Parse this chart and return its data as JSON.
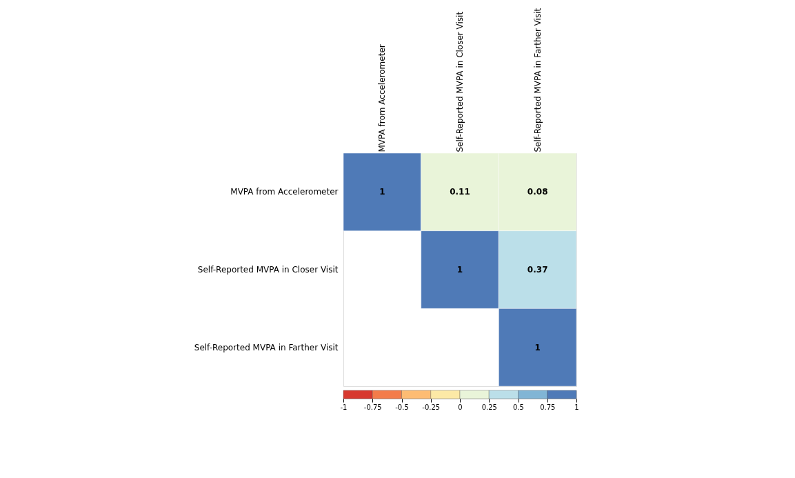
{
  "chart_data": {
    "type": "heatmap",
    "categories": [
      "MVPA from Accelerometer",
      "Self-Reported MVPA in Closer Visit",
      "Self-Reported MVPA in Farther Visit"
    ],
    "y_categories": [
      "MVPA from Accelerometer",
      "Self-Reported MVPA in Closer Visit",
      "Self-Reported MVPA in Farther Visit"
    ],
    "cells": [
      [
        1,
        0.11,
        0.08
      ],
      [
        null,
        1,
        0.37
      ],
      [
        null,
        null,
        1
      ]
    ],
    "clim": [
      -1,
      1
    ],
    "cticks": [
      -1,
      -0.75,
      -0.5,
      -0.25,
      0,
      0.25,
      0.5,
      0.75,
      1
    ],
    "data_labels": true
  }
}
